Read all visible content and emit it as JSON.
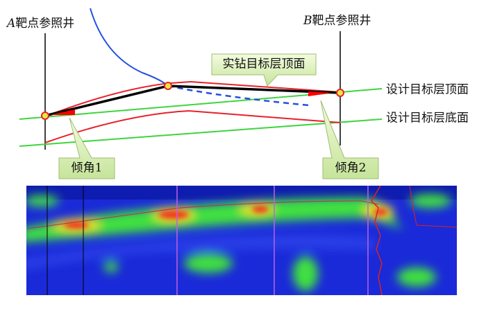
{
  "well_a": {
    "letter": "A",
    "label": "靶点参照井"
  },
  "well_b": {
    "letter": "B",
    "label": "靶点参照井"
  },
  "callouts": {
    "actual_top": "实钻目标层顶面",
    "dip1": "倾角1",
    "dip2": "倾角2"
  },
  "lines": {
    "design_top": "设计目标层顶面",
    "design_bottom": "设计目标层底面"
  }
}
